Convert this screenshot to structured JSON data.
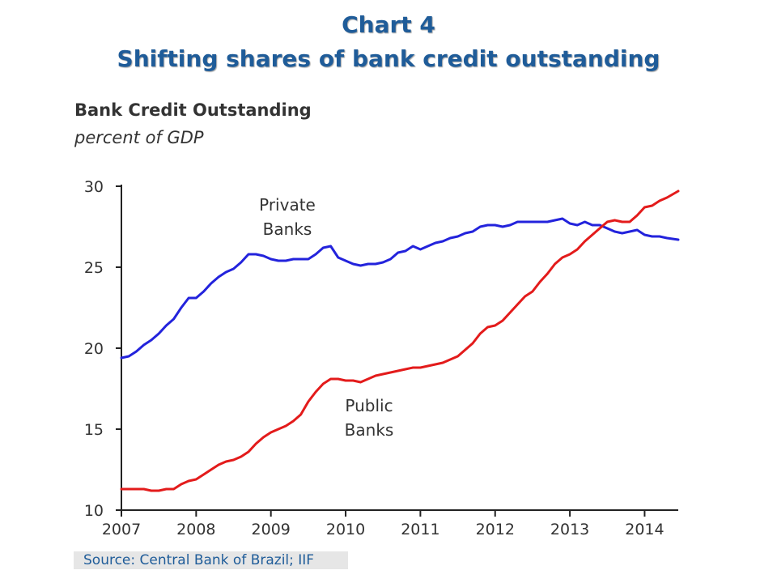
{
  "slide": {
    "title_line1": "Chart 4",
    "title_line2": "Shifting shares of bank credit outstanding",
    "source": "Source: Central Bank of Brazil; IIF"
  },
  "chart_data": {
    "type": "line",
    "title": "Bank Credit Outstanding",
    "subtitle": "percent of GDP",
    "xlim": [
      2007.0,
      2014.45
    ],
    "ylim": [
      10,
      30
    ],
    "xticks": [
      2007,
      2008,
      2009,
      2010,
      2011,
      2012,
      2013,
      2014
    ],
    "yticks": [
      10,
      15,
      20,
      25,
      30
    ],
    "grid": false,
    "annotations": [
      {
        "lines": [
          "Private",
          "Banks"
        ],
        "series": "private"
      },
      {
        "lines": [
          "Public",
          "Banks"
        ],
        "series": "public"
      }
    ],
    "series": [
      {
        "id": "private",
        "color": "#2323dc",
        "x": [
          2007.0,
          2007.1,
          2007.2,
          2007.3,
          2007.4,
          2007.5,
          2007.6,
          2007.7,
          2007.8,
          2007.9,
          2008.0,
          2008.1,
          2008.2,
          2008.3,
          2008.4,
          2008.5,
          2008.6,
          2008.7,
          2008.8,
          2008.9,
          2009.0,
          2009.1,
          2009.2,
          2009.3,
          2009.4,
          2009.5,
          2009.6,
          2009.7,
          2009.8,
          2009.9,
          2010.0,
          2010.1,
          2010.2,
          2010.3,
          2010.4,
          2010.5,
          2010.6,
          2010.7,
          2010.8,
          2010.9,
          2011.0,
          2011.1,
          2011.2,
          2011.3,
          2011.4,
          2011.5,
          2011.6,
          2011.7,
          2011.8,
          2011.9,
          2012.0,
          2012.1,
          2012.2,
          2012.3,
          2012.4,
          2012.5,
          2012.6,
          2012.7,
          2012.8,
          2012.9,
          2013.0,
          2013.1,
          2013.2,
          2013.3,
          2013.4,
          2013.5,
          2013.6,
          2013.7,
          2013.8,
          2013.9,
          2014.0,
          2014.1,
          2014.2,
          2014.3,
          2014.45
        ],
        "y": [
          19.4,
          19.5,
          19.8,
          20.2,
          20.5,
          20.9,
          21.4,
          21.8,
          22.5,
          23.1,
          23.1,
          23.5,
          24.0,
          24.4,
          24.7,
          24.9,
          25.3,
          25.8,
          25.8,
          25.7,
          25.5,
          25.4,
          25.4,
          25.5,
          25.5,
          25.5,
          25.8,
          26.2,
          26.3,
          25.6,
          25.4,
          25.2,
          25.1,
          25.2,
          25.2,
          25.3,
          25.5,
          25.9,
          26.0,
          26.3,
          26.1,
          26.3,
          26.5,
          26.6,
          26.8,
          26.9,
          27.1,
          27.2,
          27.5,
          27.6,
          27.6,
          27.5,
          27.6,
          27.8,
          27.8,
          27.8,
          27.8,
          27.8,
          27.9,
          28.0,
          27.7,
          27.6,
          27.8,
          27.6,
          27.6,
          27.4,
          27.2,
          27.1,
          27.2,
          27.3,
          27.0,
          26.9,
          26.9,
          26.8,
          26.7
        ]
      },
      {
        "id": "public",
        "color": "#e31b1b",
        "x": [
          2007.0,
          2007.1,
          2007.2,
          2007.3,
          2007.4,
          2007.5,
          2007.6,
          2007.7,
          2007.8,
          2007.9,
          2008.0,
          2008.1,
          2008.2,
          2008.3,
          2008.4,
          2008.5,
          2008.6,
          2008.7,
          2008.8,
          2008.9,
          2009.0,
          2009.1,
          2009.2,
          2009.3,
          2009.4,
          2009.5,
          2009.6,
          2009.7,
          2009.8,
          2009.9,
          2010.0,
          2010.1,
          2010.2,
          2010.3,
          2010.4,
          2010.5,
          2010.6,
          2010.7,
          2010.8,
          2010.9,
          2011.0,
          2011.1,
          2011.2,
          2011.3,
          2011.4,
          2011.5,
          2011.6,
          2011.7,
          2011.8,
          2011.9,
          2012.0,
          2012.1,
          2012.2,
          2012.3,
          2012.4,
          2012.5,
          2012.6,
          2012.7,
          2012.8,
          2012.9,
          2013.0,
          2013.1,
          2013.2,
          2013.3,
          2013.4,
          2013.5,
          2013.6,
          2013.7,
          2013.8,
          2013.9,
          2014.0,
          2014.1,
          2014.2,
          2014.3,
          2014.45
        ],
        "y": [
          11.3,
          11.3,
          11.3,
          11.3,
          11.2,
          11.2,
          11.3,
          11.3,
          11.6,
          11.8,
          11.9,
          12.2,
          12.5,
          12.8,
          13.0,
          13.1,
          13.3,
          13.6,
          14.1,
          14.5,
          14.8,
          15.0,
          15.2,
          15.5,
          15.9,
          16.7,
          17.3,
          17.8,
          18.1,
          18.1,
          18.0,
          18.0,
          17.9,
          18.1,
          18.3,
          18.4,
          18.5,
          18.6,
          18.7,
          18.8,
          18.8,
          18.9,
          19.0,
          19.1,
          19.3,
          19.5,
          19.9,
          20.3,
          20.9,
          21.3,
          21.4,
          21.7,
          22.2,
          22.7,
          23.2,
          23.5,
          24.1,
          24.6,
          25.2,
          25.6,
          25.8,
          26.1,
          26.6,
          27.0,
          27.4,
          27.8,
          27.9,
          27.8,
          27.8,
          28.2,
          28.7,
          28.8,
          29.1,
          29.3,
          29.7
        ]
      }
    ]
  }
}
